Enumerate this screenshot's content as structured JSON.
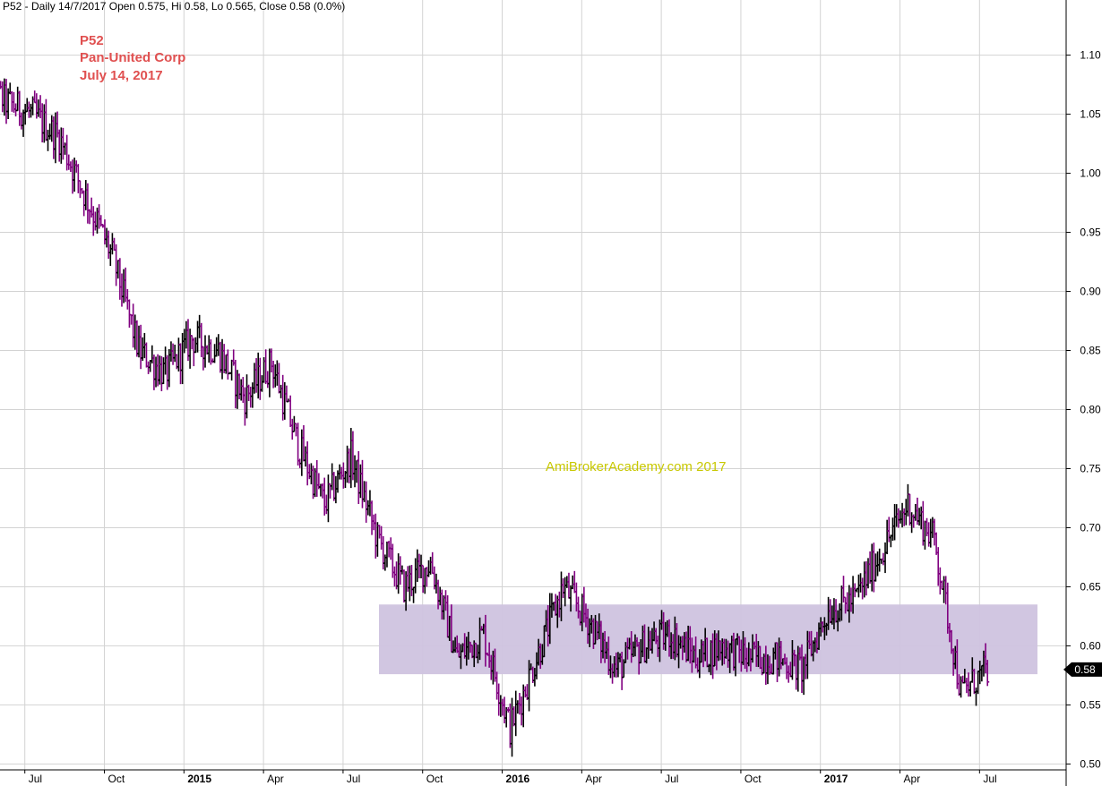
{
  "header": {
    "info": "P52 - Daily 14/7/2017 Open 0.575, Hi 0.58, Lo 0.565, Close 0.58 (0.0%)"
  },
  "title_block": {
    "ticker": "P52",
    "company": "Pan-United Corp",
    "date": "July 14, 2017"
  },
  "watermark": "AmiBrokerAcademy.com  2017",
  "colors": {
    "up_bar": "#000000",
    "down_bar": "#800080",
    "support_zone": "#cfc3df",
    "grid": "#d3d3d3",
    "title": "#e05050",
    "watermark": "#c8c800"
  },
  "chart_data": {
    "type": "ohlc",
    "title": "",
    "xlabel": "",
    "ylabel": "",
    "ylim": [
      0.495,
      1.13
    ],
    "y_ticks": [
      "1.10",
      "1.05",
      "1.00",
      "0.95",
      "0.90",
      "0.85",
      "0.80",
      "0.75",
      "0.70",
      "0.65",
      "0.60",
      "0.55",
      "0.50"
    ],
    "x_ticks": [
      "Jul",
      "Oct",
      "2015",
      "Apr",
      "Jul",
      "Oct",
      "2016",
      "Apr",
      "Jul",
      "Oct",
      "2017",
      "Apr",
      "Jul"
    ],
    "x_tick_bold": [
      false,
      false,
      true,
      false,
      false,
      false,
      true,
      false,
      false,
      false,
      true,
      false,
      false
    ],
    "last_price_label": "0.58",
    "last_price": 0.58,
    "support_zone": {
      "low": 0.576,
      "high": 0.635,
      "from_month": "2015-09",
      "to_month": "2017-07"
    },
    "grid": true,
    "series": [
      {
        "monthly_close": [
          {
            "month": "2014-06",
            "close": 1.06
          },
          {
            "month": "2014-07",
            "close": 1.05
          },
          {
            "month": "2014-08",
            "close": 1.03
          },
          {
            "month": "2014-09",
            "close": 0.98
          },
          {
            "month": "2014-10",
            "close": 0.93
          },
          {
            "month": "2014-11",
            "close": 0.85
          },
          {
            "month": "2014-12",
            "close": 0.83
          },
          {
            "month": "2015-01",
            "close": 0.86
          },
          {
            "month": "2015-02",
            "close": 0.85
          },
          {
            "month": "2015-03",
            "close": 0.81
          },
          {
            "month": "2015-04",
            "close": 0.84
          },
          {
            "month": "2015-05",
            "close": 0.77
          },
          {
            "month": "2015-06",
            "close": 0.72
          },
          {
            "month": "2015-07",
            "close": 0.76
          },
          {
            "month": "2015-08",
            "close": 0.69
          },
          {
            "month": "2015-09",
            "close": 0.65
          },
          {
            "month": "2015-10",
            "close": 0.67
          },
          {
            "month": "2015-11",
            "close": 0.59
          },
          {
            "month": "2015-12",
            "close": 0.61
          },
          {
            "month": "2016-01",
            "close": 0.53
          },
          {
            "month": "2016-02",
            "close": 0.59
          },
          {
            "month": "2016-03",
            "close": 0.65
          },
          {
            "month": "2016-04",
            "close": 0.62
          },
          {
            "month": "2016-05",
            "close": 0.58
          },
          {
            "month": "2016-06",
            "close": 0.6
          },
          {
            "month": "2016-07",
            "close": 0.61
          },
          {
            "month": "2016-08",
            "close": 0.59
          },
          {
            "month": "2016-09",
            "close": 0.6
          },
          {
            "month": "2016-10",
            "close": 0.59
          },
          {
            "month": "2016-11",
            "close": 0.59
          },
          {
            "month": "2016-12",
            "close": 0.58
          },
          {
            "month": "2017-01",
            "close": 0.63
          },
          {
            "month": "2017-02",
            "close": 0.64
          },
          {
            "month": "2017-03",
            "close": 0.68
          },
          {
            "month": "2017-04",
            "close": 0.72
          },
          {
            "month": "2017-05",
            "close": 0.69
          },
          {
            "month": "2017-06",
            "close": 0.56
          },
          {
            "month": "2017-07",
            "close": 0.58
          }
        ]
      }
    ]
  }
}
